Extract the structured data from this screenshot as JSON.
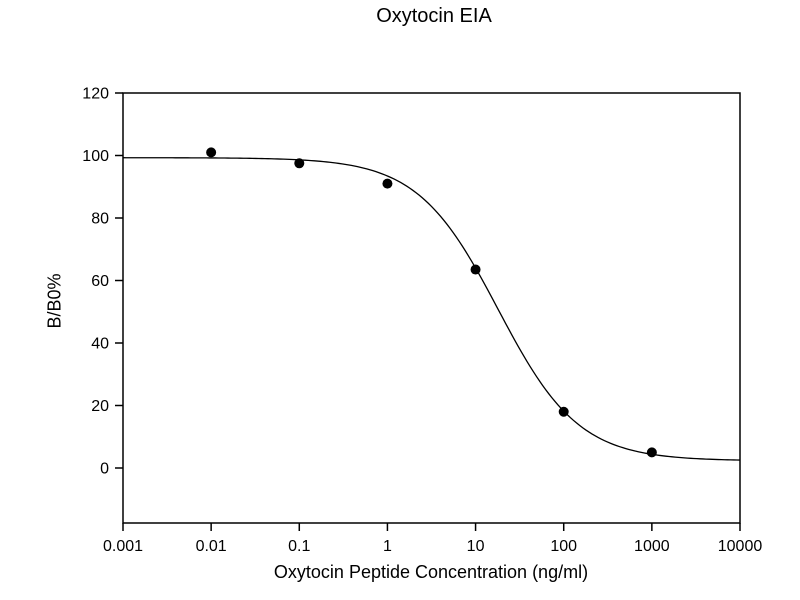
{
  "figure": {
    "background_color": "#ffffff",
    "foreground_color": "#000000"
  },
  "chart_data": {
    "type": "scatter",
    "title": "Oxytocin EIA",
    "xlabel": "Oxytocin Peptide Concentration (ng/ml)",
    "ylabel": "B/B0%",
    "x_scale": "log",
    "xlim": [
      0.001,
      10000
    ],
    "ylim": [
      -17.6,
      120
    ],
    "y_ticks": [
      0,
      20,
      40,
      60,
      80,
      100,
      120
    ],
    "y_tick_labels": [
      "0",
      "20",
      "40",
      "60",
      "80",
      "100",
      "120"
    ],
    "x_ticks": [
      0.001,
      0.01,
      0.1,
      1,
      10,
      100,
      1000,
      10000
    ],
    "x_tick_labels": [
      "0.001",
      "0.01",
      "0.1",
      "1",
      "10",
      "100",
      "1000",
      "10000"
    ],
    "grid": false,
    "frame": true,
    "legend": null,
    "series": [
      {
        "name": "standard-data-points",
        "type": "scatter",
        "marker": "filled-circle",
        "marker_radius_px": 5,
        "color": "#000000",
        "points": [
          {
            "x": 0.01,
            "y": 101
          },
          {
            "x": 0.1,
            "y": 97.5
          },
          {
            "x": 1,
            "y": 91
          },
          {
            "x": 10,
            "y": 63.5
          },
          {
            "x": 100,
            "y": 18
          },
          {
            "x": 1000,
            "y": 5
          }
        ]
      },
      {
        "name": "fit-curve",
        "type": "line",
        "color": "#000000",
        "model": "4-parameter-logistic",
        "params": {
          "top": 99.3,
          "bottom": 2.3,
          "ec50": 18,
          "hill": 0.95
        }
      }
    ]
  }
}
